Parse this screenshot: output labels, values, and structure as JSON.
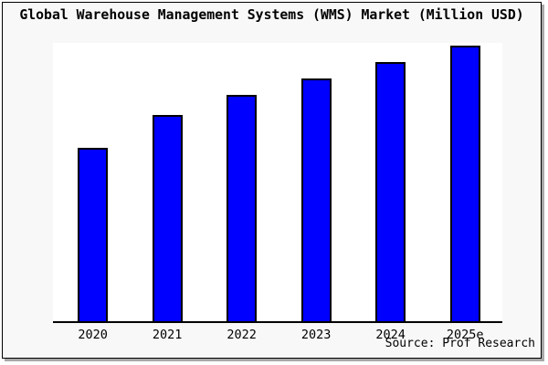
{
  "window": {
    "background_color": "#f8f8f8",
    "plot_background_color": "#ffffff",
    "border_color": "#000000",
    "shadow_color": "#a8a8a8"
  },
  "source": {
    "credit_text": "Source: Prof Research"
  },
  "chart_data": {
    "type": "bar",
    "title": "Global Warehouse Management Systems (WMS) Market (Million USD)",
    "xlabel": "",
    "ylabel": "",
    "categories": [
      "2020",
      "2021",
      "2022",
      "2023",
      "2024",
      "2025e"
    ],
    "values": [
      63,
      75,
      82,
      88,
      94,
      100
    ],
    "values_note": "no y-axis or data labels shown; values estimated as relative heights with max bar = 100",
    "ylim": [
      0,
      101
    ],
    "grid": false,
    "legend": false,
    "bar_color": "#0000ff",
    "bar_edge_color": "#000000",
    "axis_color": "#000000"
  }
}
